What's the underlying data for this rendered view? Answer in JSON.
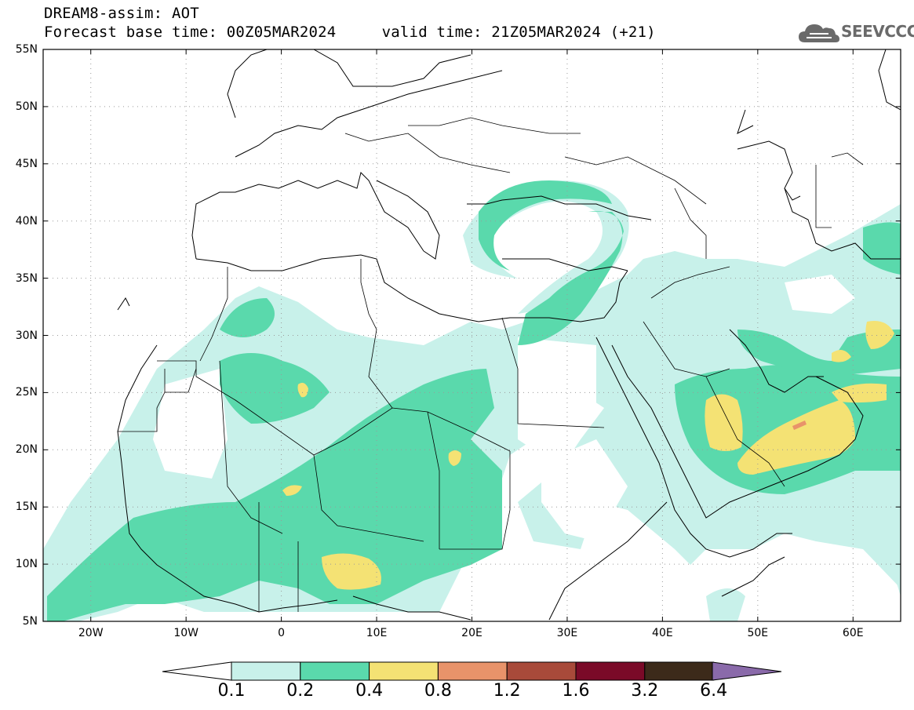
{
  "header": {
    "title_line1": "DREAM8-assim: AOT",
    "title_line2": "Forecast base time: 00Z05MAR2024     valid time: 21Z05MAR2024 (+21)",
    "logo_text": "SEEVCCC"
  },
  "map": {
    "variable": "AOT",
    "lon_range": [
      -25,
      65
    ],
    "lat_range": [
      5,
      55
    ],
    "lat_labels": [
      "55N",
      "50N",
      "45N",
      "40N",
      "35N",
      "30N",
      "25N",
      "20N",
      "15N",
      "10N",
      "5N"
    ],
    "lat_values": [
      55,
      50,
      45,
      40,
      35,
      30,
      25,
      20,
      15,
      10,
      5
    ],
    "lon_labels": [
      "20W",
      "10W",
      "0",
      "10E",
      "20E",
      "30E",
      "40E",
      "50E",
      "60E"
    ],
    "lon_values": [
      -20,
      -10,
      0,
      10,
      20,
      30,
      40,
      50,
      60
    ]
  },
  "colorbar": {
    "levels": [
      "0.1",
      "0.2",
      "0.4",
      "0.8",
      "1.2",
      "1.6",
      "3.2",
      "6.4"
    ],
    "colors": [
      "#c8f1ea",
      "#5ad9ac",
      "#f4e274",
      "#e8936a",
      "#a84a3a",
      "#7a0a28",
      "#3c2a1a",
      "#8a6aaa"
    ]
  }
}
